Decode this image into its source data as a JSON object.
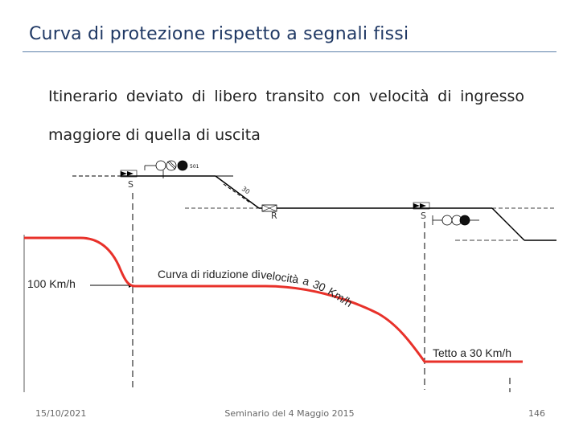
{
  "slide": {
    "title": "Curva di protezione rispetto a segnali fissi",
    "body": "Itinerario deviato di libero transito con velocità di ingresso maggiore di quella di uscita"
  },
  "diagram": {
    "speed_in_label": "100 Km/h",
    "curve_label": "Curva di riduzione di velocità a 30 Km/h",
    "ceiling_label": "Tetto a 30 Km/h",
    "signal_s1_label": "S",
    "signal_r_label": "R",
    "signal_s2_label": "S",
    "signal_code_label": "501",
    "switch_speed_label": "30",
    "colors": {
      "curve": "#e8312a",
      "track": "#000000",
      "guide": "#000000"
    }
  },
  "footer": {
    "date": "15/10/2021",
    "center": "Seminario del 4 Maggio 2015",
    "page": "146"
  }
}
